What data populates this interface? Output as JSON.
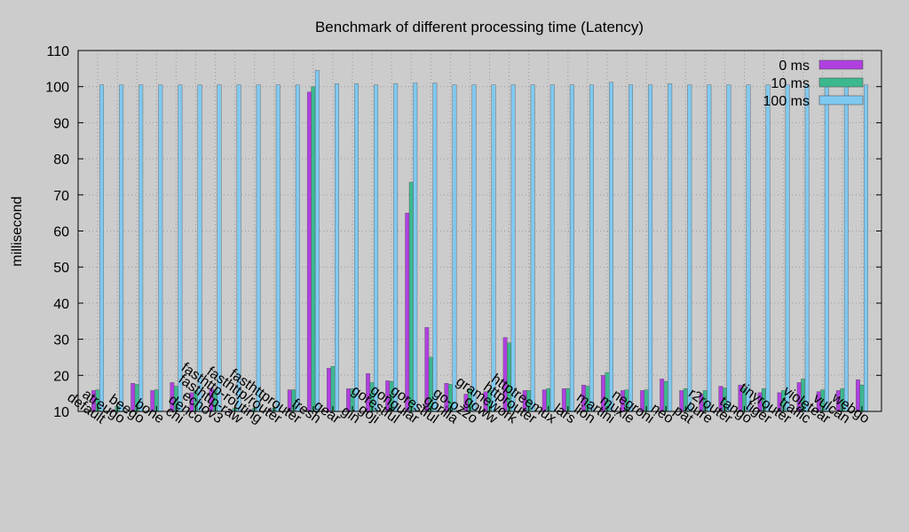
{
  "chart_data": {
    "type": "bar",
    "title": "Benchmark of different processing time (Latency)",
    "xlabel": "",
    "ylabel": "millisecond",
    "ylim": [
      10,
      110
    ],
    "yticks": [
      10,
      20,
      30,
      40,
      50,
      60,
      70,
      80,
      90,
      100,
      110
    ],
    "grid": true,
    "legend_position": "top-right",
    "categories": [
      "default",
      "atreugo",
      "beego",
      "bone",
      "chi",
      "denco",
      "echov3",
      "fasthttp-raw",
      "fasthttp-routing",
      "fasthttp/router",
      "fasthttprouter",
      "fresh",
      "gear",
      "gin",
      "goji",
      "gorestful",
      "gongular",
      "gorestful",
      "gorilla",
      "go-ozzo",
      "goww",
      "gramework",
      "httprouter",
      "httptreemux",
      "lars",
      "lion",
      "martini",
      "muxie",
      "negroni",
      "neo",
      "pat",
      "pure",
      "r2router",
      "tango",
      "tiger",
      "tinyrouter",
      "traffic",
      "violetear",
      "vulcan",
      "webgo"
    ],
    "series": [
      {
        "name": "0 ms",
        "color": "#b040e0",
        "values": [
          15.8,
          10.5,
          17.8,
          15.8,
          18.0,
          15.2,
          16.5,
          10.3,
          10.5,
          10.5,
          16.0,
          98.5,
          22.0,
          16.3,
          20.5,
          18.5,
          65.0,
          33.3,
          17.8,
          14.8,
          15.5,
          30.5,
          15.8,
          16.0,
          16.3,
          17.3,
          20.0,
          15.8,
          15.8,
          19.0,
          15.8,
          14.8,
          17.0,
          17.3,
          15.2,
          15.2,
          18.0,
          15.5,
          15.8,
          18.8
        ]
      },
      {
        "name": "10 ms",
        "color": "#3cb88e",
        "values": [
          16.0,
          11.5,
          17.5,
          16.0,
          17.0,
          15.8,
          16.0,
          11.0,
          11.0,
          11.0,
          16.0,
          100.0,
          22.5,
          16.3,
          18.0,
          18.3,
          73.5,
          25.0,
          17.5,
          16.3,
          15.8,
          29.0,
          15.8,
          16.3,
          16.3,
          17.0,
          20.8,
          16.0,
          16.0,
          18.3,
          16.3,
          15.8,
          16.5,
          16.5,
          16.3,
          15.8,
          19.0,
          16.0,
          16.3,
          17.3
        ]
      },
      {
        "name": "100 ms",
        "color": "#7fc9f0",
        "values": [
          100.5,
          100.5,
          100.5,
          100.5,
          100.5,
          100.5,
          100.5,
          100.5,
          100.5,
          100.5,
          100.5,
          104.5,
          100.8,
          100.8,
          100.5,
          100.8,
          101.0,
          101.0,
          100.5,
          100.5,
          100.5,
          100.5,
          100.5,
          100.5,
          100.5,
          100.5,
          101.2,
          100.5,
          100.5,
          100.8,
          100.5,
          100.5,
          100.5,
          100.5,
          100.5,
          100.5,
          100.5,
          100.5,
          100.5,
          100.5
        ]
      }
    ]
  }
}
